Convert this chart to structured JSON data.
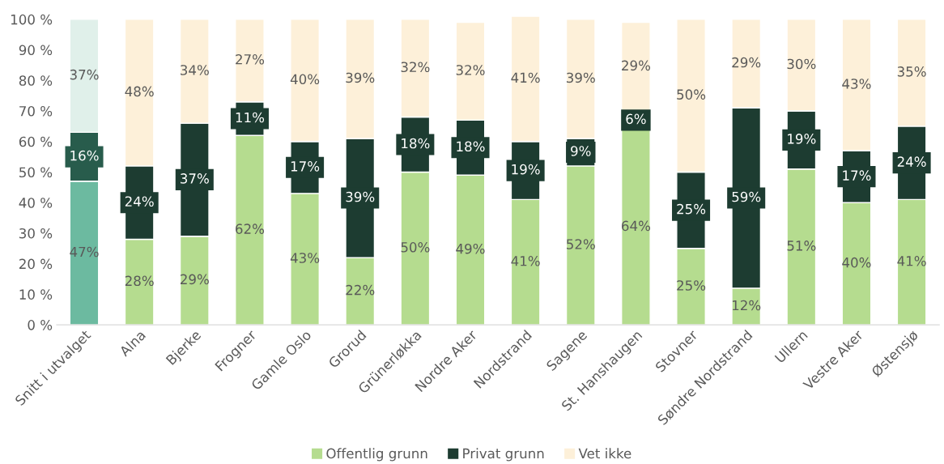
{
  "chart_data": {
    "type": "bar",
    "stacked": true,
    "categories": [
      "Snitt i utvalget",
      "Alna",
      "Bjerke",
      "Frogner",
      "Gamle Oslo",
      "Grorud",
      "Grünerløkka",
      "Nordre Aker",
      "Nordstrand",
      "Sagene",
      "St. Hanshaugen",
      "Stovner",
      "Søndre Nordstrand",
      "Ullern",
      "Vestre Aker",
      "Østensjø"
    ],
    "series": [
      {
        "name": "Offentlig grunn",
        "color": "#b5dc8f",
        "colors": [
          "#6cbaa0",
          "#b5dc8f",
          "#b5dc8f",
          "#b5dc8f",
          "#b5dc8f",
          "#b5dc8f",
          "#b5dc8f",
          "#b5dc8f",
          "#b5dc8f",
          "#b5dc8f",
          "#b5dc8f",
          "#b5dc8f",
          "#b5dc8f",
          "#b5dc8f",
          "#b5dc8f",
          "#b5dc8f"
        ],
        "values": [
          47,
          28,
          29,
          62,
          43,
          22,
          50,
          49,
          41,
          52,
          64,
          25,
          12,
          51,
          40,
          41
        ],
        "value_labels": [
          "47%",
          "28%",
          "29%",
          "62%",
          "43%",
          "22%",
          "50%",
          "49%",
          "41%",
          "52%",
          "64%",
          "25%",
          "12%",
          "51%",
          "40%",
          "41%"
        ]
      },
      {
        "name": "Privat grunn",
        "color": "#1d3c31",
        "colors": [
          "#285c4c",
          "#1d3c31",
          "#1d3c31",
          "#1d3c31",
          "#1d3c31",
          "#1d3c31",
          "#1d3c31",
          "#1d3c31",
          "#1d3c31",
          "#1d3c31",
          "#1d3c31",
          "#1d3c31",
          "#1d3c31",
          "#1d3c31",
          "#1d3c31",
          "#1d3c31"
        ],
        "values": [
          16,
          24,
          37,
          11,
          17,
          39,
          18,
          18,
          19,
          9,
          6,
          25,
          59,
          19,
          17,
          24
        ],
        "value_labels": [
          "16%",
          "24%",
          "37%",
          "11%",
          "17%",
          "39%",
          "18%",
          "18%",
          "19%",
          "9%",
          "6%",
          "25%",
          "59%",
          "19%",
          "17%",
          "24%"
        ]
      },
      {
        "name": "Vet ikke",
        "color": "#fdf0d9",
        "colors": [
          "#e0f0ea",
          "#fdf0d9",
          "#fdf0d9",
          "#fdf0d9",
          "#fdf0d9",
          "#fdf0d9",
          "#fdf0d9",
          "#fdf0d9",
          "#fdf0d9",
          "#fdf0d9",
          "#fdf0d9",
          "#fdf0d9",
          "#fdf0d9",
          "#fdf0d9",
          "#fdf0d9",
          "#fdf0d9"
        ],
        "values": [
          37,
          48,
          34,
          27,
          40,
          39,
          32,
          32,
          41,
          39,
          29,
          50,
          29,
          30,
          43,
          35
        ],
        "value_labels": [
          "37%",
          "48%",
          "34%",
          "27%",
          "40%",
          "39%",
          "32%",
          "32%",
          "41%",
          "39%",
          "29%",
          "50%",
          "29%",
          "30%",
          "43%",
          "35%"
        ]
      }
    ],
    "ylim": [
      0,
      101
    ],
    "yticks": [
      {
        "value": 0,
        "label": "0 %"
      },
      {
        "value": 10,
        "label": "10 %"
      },
      {
        "value": 20,
        "label": "20 %"
      },
      {
        "value": 30,
        "label": "30 %"
      },
      {
        "value": 40,
        "label": "40 %"
      },
      {
        "value": 50,
        "label": "50 %"
      },
      {
        "value": 60,
        "label": "60 %"
      },
      {
        "value": 70,
        "label": "70 %"
      },
      {
        "value": 80,
        "label": "80 %"
      },
      {
        "value": 90,
        "label": "90 %"
      },
      {
        "value": 100,
        "label": "100 %"
      }
    ],
    "grid": false,
    "legend": "bottom"
  }
}
